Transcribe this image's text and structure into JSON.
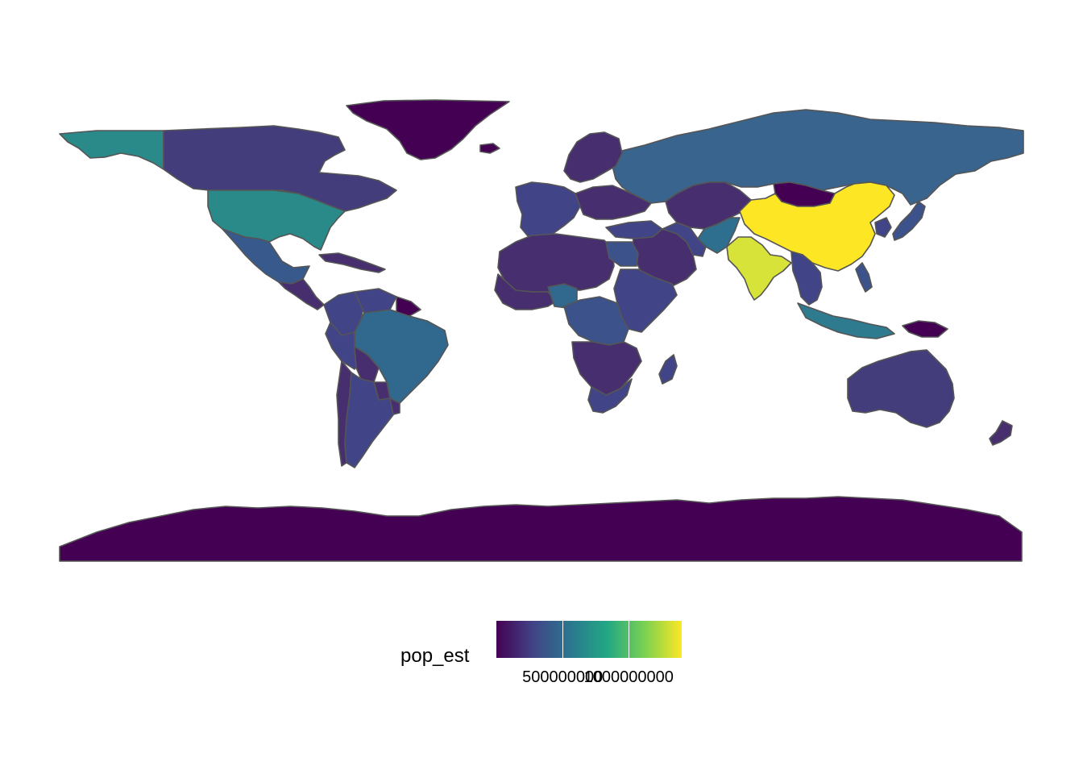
{
  "map": {
    "fill_variable": "pop_est",
    "border_color": "#555555",
    "background_color": "#ffffff",
    "countries": [
      {
        "name": "Greenland",
        "color": "#440154"
      },
      {
        "name": "Alaska",
        "color": "#2a8a89"
      },
      {
        "name": "Canada",
        "color": "#433e7b"
      },
      {
        "name": "United States",
        "color": "#2a8a89"
      },
      {
        "name": "Mexico",
        "color": "#38598c"
      },
      {
        "name": "Central America",
        "color": "#472f6f"
      },
      {
        "name": "Caribbean",
        "color": "#472f6f"
      },
      {
        "name": "Colombia",
        "color": "#414487"
      },
      {
        "name": "Venezuela",
        "color": "#414487"
      },
      {
        "name": "Guianas",
        "color": "#440154"
      },
      {
        "name": "Brazil",
        "color": "#31688e"
      },
      {
        "name": "Peru",
        "color": "#414487"
      },
      {
        "name": "Bolivia",
        "color": "#472f6f"
      },
      {
        "name": "Paraguay",
        "color": "#472f6f"
      },
      {
        "name": "Chile",
        "color": "#472f6f"
      },
      {
        "name": "Argentina",
        "color": "#414487"
      },
      {
        "name": "Uruguay",
        "color": "#472f6f"
      },
      {
        "name": "Antarctica",
        "color": "#440154"
      },
      {
        "name": "Russia",
        "color": "#39648e"
      },
      {
        "name": "Scandinavia",
        "color": "#472f6f"
      },
      {
        "name": "Western Europe",
        "color": "#414487"
      },
      {
        "name": "Eastern Europe",
        "color": "#472f6f"
      },
      {
        "name": "Turkey",
        "color": "#414487"
      },
      {
        "name": "Kazakhstan & Central Asia",
        "color": "#472f6f"
      },
      {
        "name": "Mongolia",
        "color": "#440154"
      },
      {
        "name": "China",
        "color": "#fde725"
      },
      {
        "name": "India",
        "color": "#d8e33a"
      },
      {
        "name": "Pakistan",
        "color": "#2e6e8e"
      },
      {
        "name": "Middle East",
        "color": "#472f6f"
      },
      {
        "name": "Iran",
        "color": "#414487"
      },
      {
        "name": "Southeast Asia",
        "color": "#414487"
      },
      {
        "name": "Indonesia",
        "color": "#2e7a8e"
      },
      {
        "name": "Japan",
        "color": "#3b528b"
      },
      {
        "name": "Korea",
        "color": "#414487"
      },
      {
        "name": "Philippines",
        "color": "#3b528b"
      },
      {
        "name": "North Africa",
        "color": "#472f6f"
      },
      {
        "name": "Egypt",
        "color": "#3b528b"
      },
      {
        "name": "West Africa",
        "color": "#472f6f"
      },
      {
        "name": "Nigeria",
        "color": "#31688e"
      },
      {
        "name": "East Africa",
        "color": "#414487"
      },
      {
        "name": "Central Africa",
        "color": "#3b528b"
      },
      {
        "name": "Southern Africa",
        "color": "#472f6f"
      },
      {
        "name": "South Africa",
        "color": "#414487"
      },
      {
        "name": "Madagascar",
        "color": "#414487"
      },
      {
        "name": "Australia",
        "color": "#433e7b"
      },
      {
        "name": "New Guinea",
        "color": "#440154"
      },
      {
        "name": "New Zealand",
        "color": "#472f6f"
      },
      {
        "name": "Iceland",
        "color": "#440154"
      }
    ]
  },
  "legend": {
    "title": "pop_est",
    "gradient_colors": [
      "#440154",
      "#414487",
      "#2a788e",
      "#22a884",
      "#7ad151",
      "#fde725"
    ],
    "domain": [
      0,
      1400000000
    ],
    "ticks": [
      {
        "value": 500000000,
        "label": "500000000"
      },
      {
        "value": 1000000000,
        "label": "1000000000"
      }
    ]
  }
}
